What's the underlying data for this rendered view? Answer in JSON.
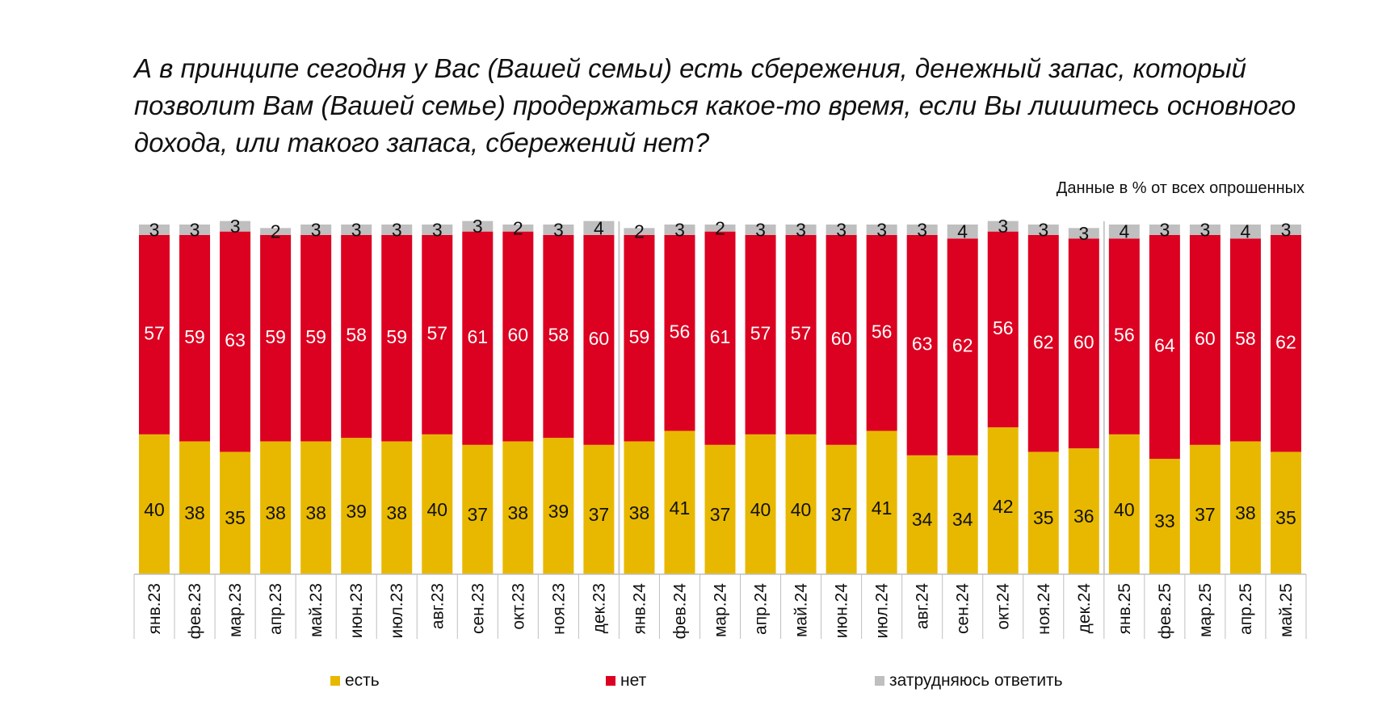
{
  "chart_data": {
    "type": "bar",
    "stacked": true,
    "title": "А в принципе сегодня у Вас (Вашей семьи) есть сбережения, денежный запас, который позволит Вам (Вашей семье) продержаться какое-то время, если Вы лишитесь основного дохода, или такого запаса, сбережений нет?",
    "subtitle": "Данные в % от всех опрошенных",
    "categories": [
      "янв.23",
      "фев.23",
      "мар.23",
      "апр.23",
      "май.23",
      "июн.23",
      "июл.23",
      "авг.23",
      "сен.23",
      "окт.23",
      "ноя.23",
      "дек.23",
      "янв.24",
      "фев.24",
      "мар.24",
      "апр.24",
      "май.24",
      "июн.24",
      "июл.24",
      "авг.24",
      "сен.24",
      "окт.24",
      "ноя.24",
      "дек.24",
      "янв.25",
      "фев.25",
      "мар.25",
      "апр.25",
      "май.25"
    ],
    "series": [
      {
        "name": "есть",
        "color": "#E8B800",
        "label_color": "#111111",
        "values": [
          40,
          38,
          35,
          38,
          38,
          39,
          38,
          40,
          37,
          38,
          39,
          37,
          38,
          41,
          37,
          40,
          40,
          37,
          41,
          34,
          34,
          42,
          35,
          36,
          40,
          33,
          37,
          38,
          35
        ]
      },
      {
        "name": "нет",
        "color": "#DC0021",
        "label_color": "#FFFFFF",
        "values": [
          57,
          59,
          63,
          59,
          59,
          58,
          59,
          57,
          61,
          60,
          58,
          60,
          59,
          56,
          61,
          57,
          57,
          60,
          56,
          63,
          62,
          56,
          62,
          60,
          56,
          64,
          60,
          58,
          62
        ]
      },
      {
        "name": "затрудняюсь ответить",
        "color": "#BFBFBF",
        "label_color": "#111111",
        "values": [
          3,
          3,
          3,
          2,
          3,
          3,
          3,
          3,
          3,
          2,
          3,
          4,
          2,
          3,
          2,
          3,
          3,
          3,
          3,
          3,
          4,
          3,
          3,
          3,
          4,
          3,
          3,
          4,
          3
        ]
      }
    ],
    "ylim": [
      0,
      100
    ],
    "legend_position": "bottom",
    "grid": false,
    "year_separators_after": [
      "дек.23",
      "дек.24"
    ]
  }
}
